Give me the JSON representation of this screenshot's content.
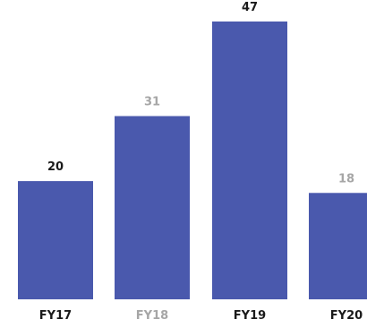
{
  "chart_data": {
    "type": "bar",
    "categories": [
      "FY17",
      "FY18",
      "FY19",
      "FY20"
    ],
    "values": [
      20,
      31,
      47,
      18
    ],
    "title": "",
    "xlabel": "",
    "ylabel": "",
    "grid": false,
    "legend": "none",
    "colors": {
      "bar": "#4a59ad",
      "label_emphasis": "#1a1a1a",
      "label_muted": "#a6a6a6"
    },
    "label_styles": [
      "emphasis",
      "muted",
      "emphasis",
      "muted"
    ],
    "category_label_styles": [
      "emphasis",
      "muted",
      "emphasis",
      "emphasis"
    ]
  }
}
